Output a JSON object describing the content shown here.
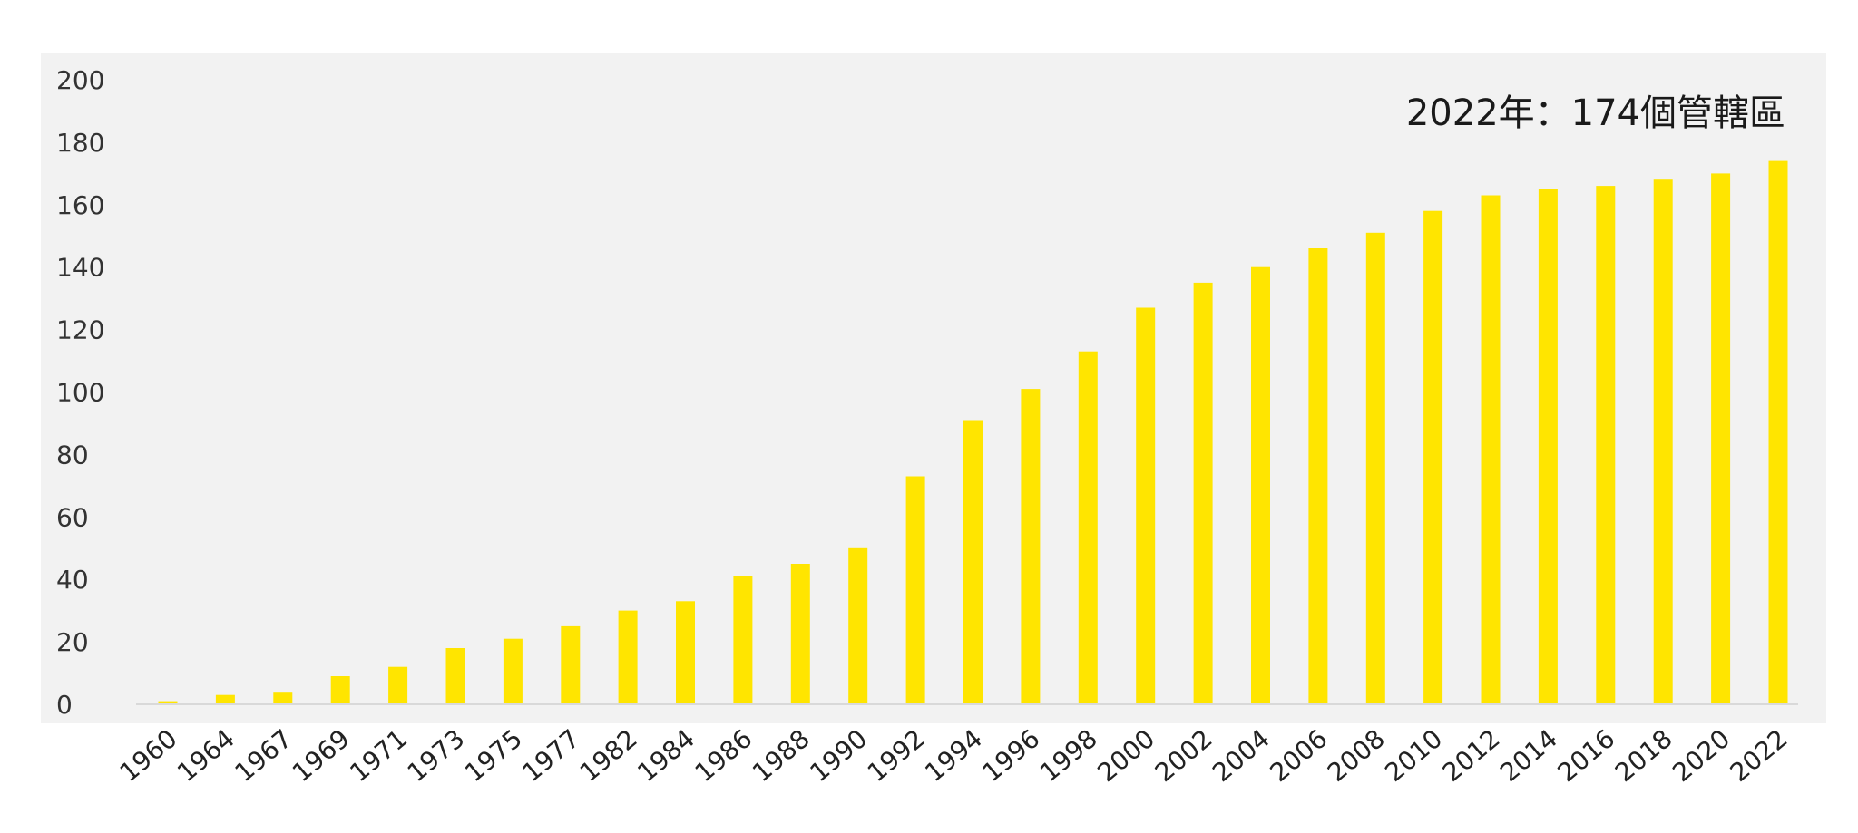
{
  "colors": {
    "bar": "#FFE500",
    "plot_background": "#F2F2F2",
    "baseline": "#D9D9D9"
  },
  "chart_data": {
    "type": "bar",
    "categories": [
      "1960",
      "1964",
      "1967",
      "1969",
      "1971",
      "1973",
      "1975",
      "1977",
      "1982",
      "1984",
      "1986",
      "1988",
      "1990",
      "1992",
      "1994",
      "1996",
      "1998",
      "2000",
      "2002",
      "2004",
      "2006",
      "2008",
      "2010",
      "2012",
      "2014",
      "2016",
      "2018",
      "2020",
      "2022"
    ],
    "values": [
      1,
      3,
      4,
      9,
      12,
      18,
      21,
      25,
      30,
      33,
      41,
      45,
      50,
      73,
      91,
      101,
      113,
      127,
      135,
      140,
      146,
      151,
      158,
      163,
      165,
      166,
      168,
      170,
      174
    ],
    "yticks": [
      0,
      20,
      40,
      60,
      80,
      100,
      120,
      140,
      160,
      180,
      200
    ],
    "ylim": [
      0,
      200
    ],
    "annotation": "2022年：174個管轄區",
    "grid": false,
    "legend": "none"
  }
}
